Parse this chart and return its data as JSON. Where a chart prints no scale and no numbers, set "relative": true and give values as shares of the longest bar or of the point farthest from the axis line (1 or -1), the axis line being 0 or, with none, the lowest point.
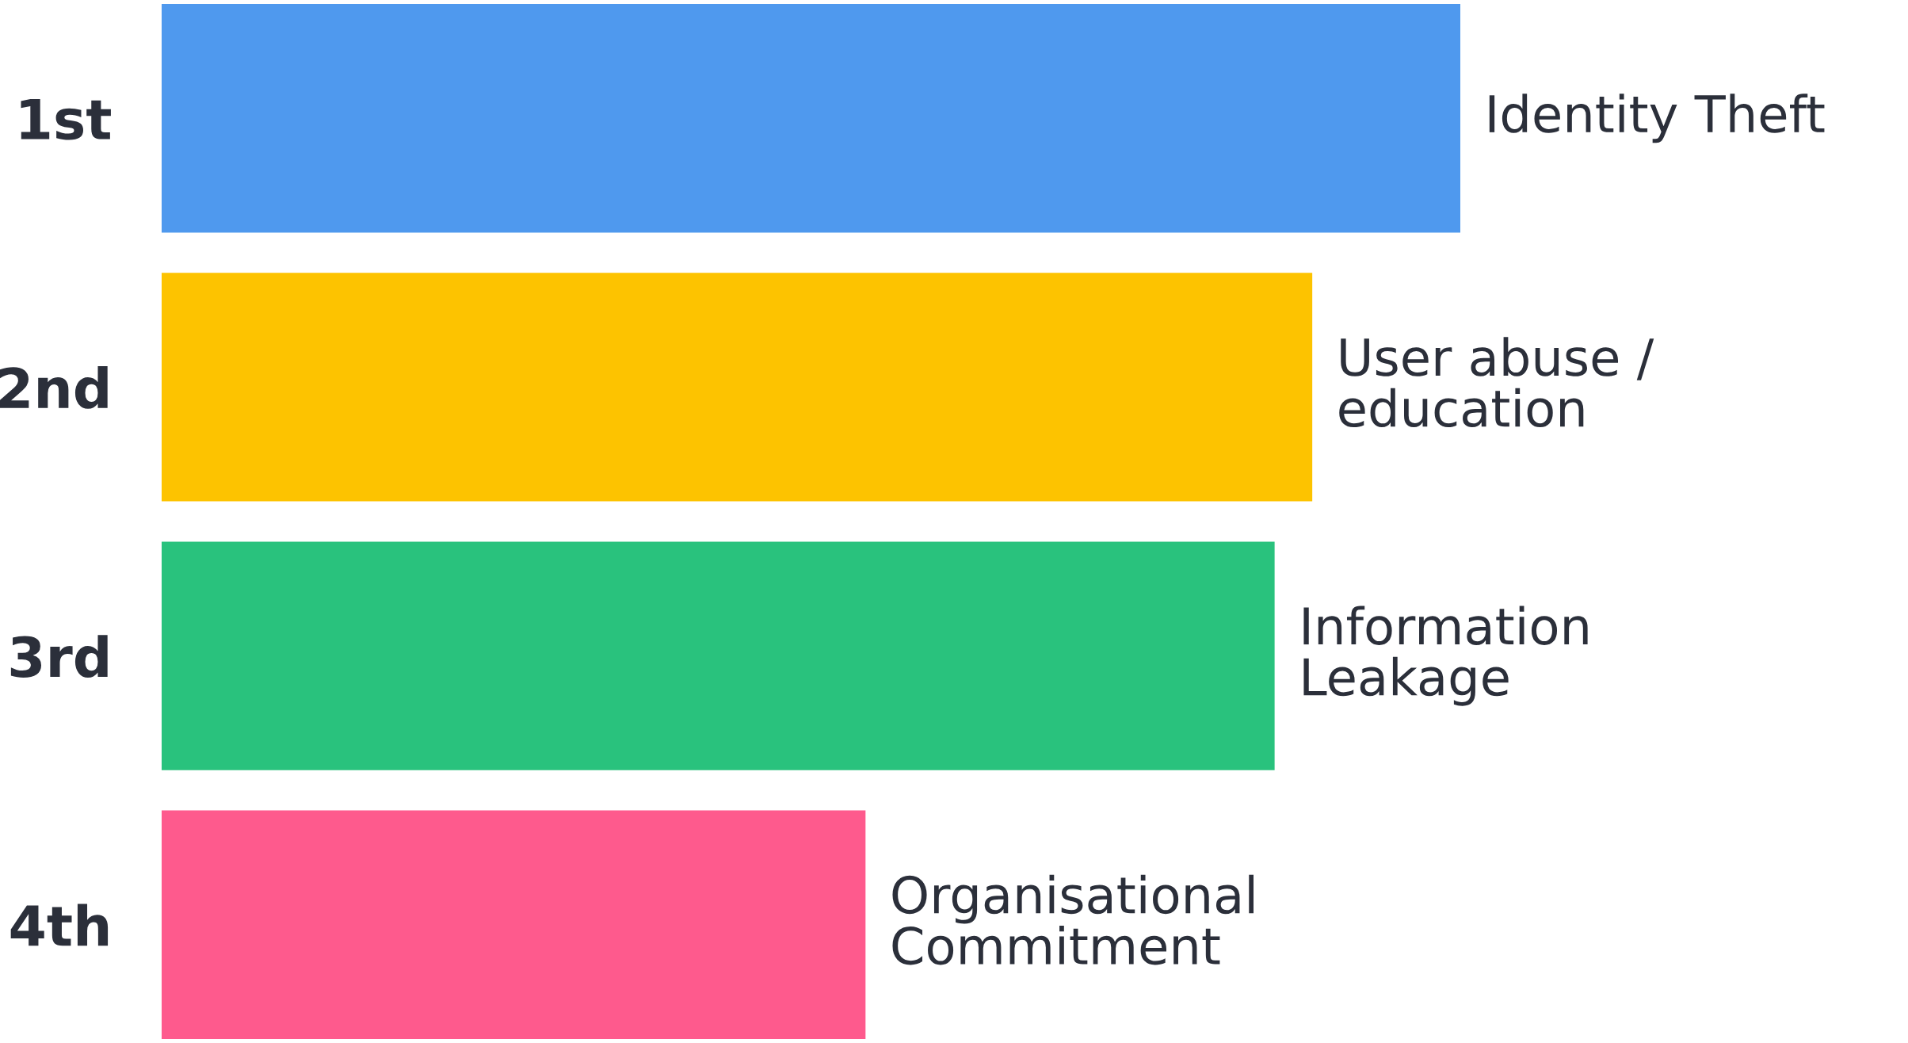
{
  "chart_data": {
    "type": "bar",
    "orientation": "horizontal",
    "relative": true,
    "categories": [
      "1st",
      "2nd",
      "3rd",
      "4th"
    ],
    "values": [
      1,
      0.886,
      0.857,
      0.542
    ],
    "colors": [
      "#4f99ee",
      "#fdc300",
      "#29c27d",
      "#fe5a8d"
    ],
    "annotations": [
      {
        "text": "Identity Theft",
        "x": 1,
        "y": "1st"
      },
      {
        "text": "User abuse /\neducation",
        "x": 0.886,
        "y": "2nd"
      },
      {
        "text": "Information\nLeakage",
        "x": 0.857,
        "y": "3rd"
      },
      {
        "text": "Organisational\nCommitment",
        "x": 0.542,
        "y": "4th"
      }
    ],
    "grid": false,
    "legend": false
  }
}
